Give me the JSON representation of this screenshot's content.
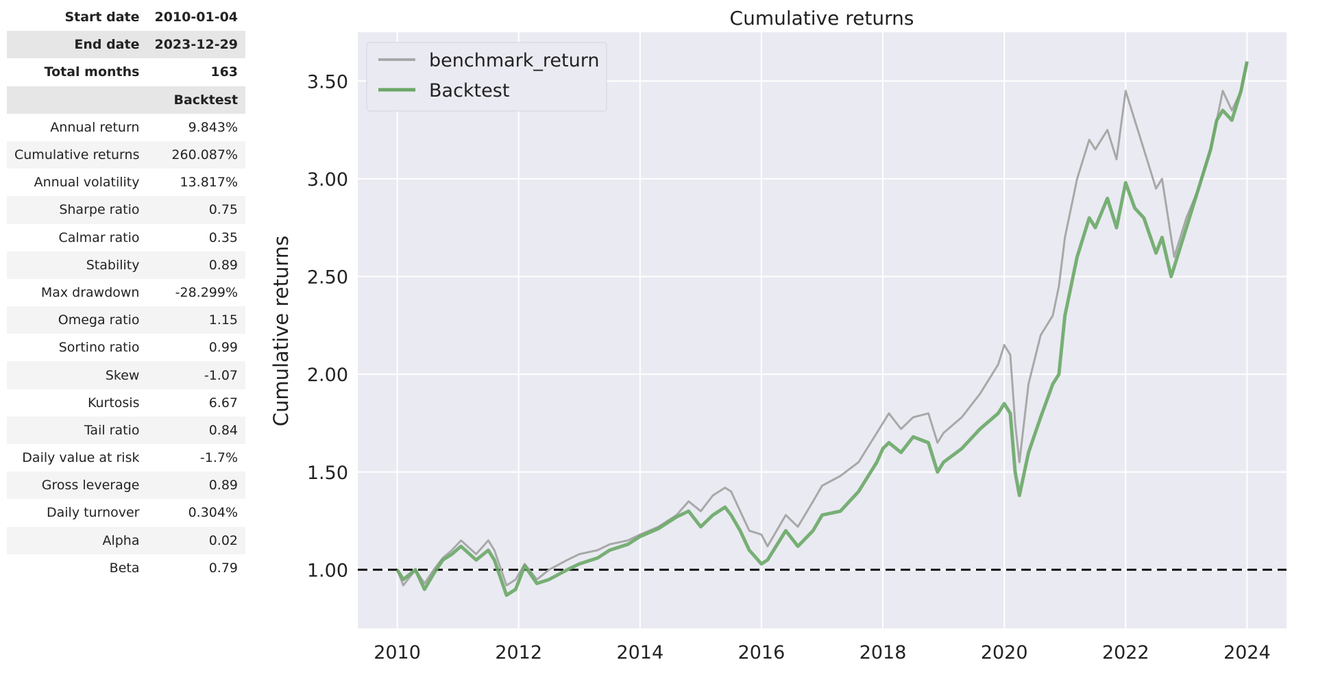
{
  "stats_table": {
    "header_rows": [
      {
        "label": "Start date",
        "value": "2010-01-04"
      },
      {
        "label": "End date",
        "value": "2023-12-29"
      },
      {
        "label": "Total months",
        "value": "163"
      },
      {
        "label": "",
        "value": "Backtest"
      }
    ],
    "rows": [
      {
        "label": "Annual return",
        "value": "9.843%"
      },
      {
        "label": "Cumulative returns",
        "value": "260.087%"
      },
      {
        "label": "Annual volatility",
        "value": "13.817%"
      },
      {
        "label": "Sharpe ratio",
        "value": "0.75"
      },
      {
        "label": "Calmar ratio",
        "value": "0.35"
      },
      {
        "label": "Stability",
        "value": "0.89"
      },
      {
        "label": "Max drawdown",
        "value": "-28.299%"
      },
      {
        "label": "Omega ratio",
        "value": "1.15"
      },
      {
        "label": "Sortino ratio",
        "value": "0.99"
      },
      {
        "label": "Skew",
        "value": "-1.07"
      },
      {
        "label": "Kurtosis",
        "value": "6.67"
      },
      {
        "label": "Tail ratio",
        "value": "0.84"
      },
      {
        "label": "Daily value at risk",
        "value": "-1.7%"
      },
      {
        "label": "Gross leverage",
        "value": "0.89"
      },
      {
        "label": "Daily turnover",
        "value": "0.304%"
      },
      {
        "label": "Alpha",
        "value": "0.02"
      },
      {
        "label": "Beta",
        "value": "0.79"
      }
    ]
  },
  "chart_data": {
    "type": "line",
    "title": "Cumulative returns",
    "xlabel": "",
    "ylabel": "Cumulative returns",
    "xlim": [
      2009.35,
      2024.65
    ],
    "ylim": [
      0.7,
      3.75
    ],
    "xticks": [
      2010,
      2012,
      2014,
      2016,
      2018,
      2020,
      2022,
      2024
    ],
    "yticks": [
      1.0,
      1.5,
      2.0,
      2.5,
      3.0,
      3.5
    ],
    "ytick_labels": [
      "1.00",
      "1.50",
      "2.00",
      "2.50",
      "3.00",
      "3.50"
    ],
    "grid": true,
    "legend_position": "top-left",
    "reference_line": {
      "y": 1.0,
      "style": "dashed",
      "color": "#111111"
    },
    "series": [
      {
        "name": "benchmark_return",
        "color": "#a8a8a8",
        "x": [
          2010.0,
          2010.1,
          2010.3,
          2010.45,
          2010.6,
          2010.75,
          2010.9,
          2011.05,
          2011.3,
          2011.5,
          2011.6,
          2011.8,
          2011.95,
          2012.1,
          2012.3,
          2012.5,
          2012.8,
          2013.0,
          2013.3,
          2013.5,
          2013.8,
          2014.0,
          2014.3,
          2014.6,
          2014.8,
          2015.0,
          2015.2,
          2015.4,
          2015.5,
          2015.65,
          2015.8,
          2016.0,
          2016.1,
          2016.4,
          2016.6,
          2016.85,
          2017.0,
          2017.3,
          2017.6,
          2017.9,
          2018.0,
          2018.1,
          2018.3,
          2018.5,
          2018.75,
          2018.9,
          2019.0,
          2019.3,
          2019.6,
          2019.9,
          2020.0,
          2020.1,
          2020.18,
          2020.25,
          2020.4,
          2020.6,
          2020.8,
          2020.9,
          2021.0,
          2021.2,
          2021.4,
          2021.5,
          2021.7,
          2021.85,
          2022.0,
          2022.15,
          2022.3,
          2022.5,
          2022.6,
          2022.75,
          2022.8,
          2023.0,
          2023.2,
          2023.4,
          2023.5,
          2023.6,
          2023.75,
          2023.9,
          2024.0
        ],
        "y": [
          1.0,
          0.92,
          1.0,
          0.93,
          1.0,
          1.06,
          1.1,
          1.15,
          1.08,
          1.15,
          1.1,
          0.92,
          0.95,
          1.03,
          0.95,
          1.0,
          1.05,
          1.08,
          1.1,
          1.13,
          1.15,
          1.18,
          1.22,
          1.28,
          1.35,
          1.3,
          1.38,
          1.42,
          1.4,
          1.3,
          1.2,
          1.18,
          1.12,
          1.28,
          1.22,
          1.35,
          1.43,
          1.48,
          1.55,
          1.7,
          1.75,
          1.8,
          1.72,
          1.78,
          1.8,
          1.65,
          1.7,
          1.78,
          1.9,
          2.05,
          2.15,
          2.1,
          1.75,
          1.55,
          1.95,
          2.2,
          2.3,
          2.45,
          2.7,
          3.0,
          3.2,
          3.15,
          3.25,
          3.1,
          3.45,
          3.3,
          3.15,
          2.95,
          3.0,
          2.7,
          2.6,
          2.8,
          2.95,
          3.15,
          3.3,
          3.45,
          3.35,
          3.45,
          3.6
        ]
      },
      {
        "name": "Backtest",
        "color": "#6aa867",
        "x": [
          2010.0,
          2010.1,
          2010.3,
          2010.45,
          2010.6,
          2010.75,
          2010.9,
          2011.05,
          2011.3,
          2011.5,
          2011.6,
          2011.8,
          2011.95,
          2012.1,
          2012.3,
          2012.5,
          2012.8,
          2013.0,
          2013.3,
          2013.5,
          2013.8,
          2014.0,
          2014.3,
          2014.6,
          2014.8,
          2015.0,
          2015.2,
          2015.4,
          2015.5,
          2015.65,
          2015.8,
          2016.0,
          2016.1,
          2016.4,
          2016.6,
          2016.85,
          2017.0,
          2017.3,
          2017.6,
          2017.9,
          2018.0,
          2018.1,
          2018.3,
          2018.5,
          2018.75,
          2018.9,
          2019.0,
          2019.3,
          2019.6,
          2019.9,
          2020.0,
          2020.1,
          2020.18,
          2020.25,
          2020.4,
          2020.6,
          2020.8,
          2020.9,
          2021.0,
          2021.2,
          2021.4,
          2021.5,
          2021.7,
          2021.85,
          2022.0,
          2022.15,
          2022.3,
          2022.5,
          2022.6,
          2022.75,
          2022.8,
          2023.0,
          2023.2,
          2023.4,
          2023.5,
          2023.6,
          2023.75,
          2023.9,
          2024.0
        ],
        "y": [
          1.0,
          0.95,
          1.0,
          0.9,
          0.98,
          1.05,
          1.08,
          1.12,
          1.05,
          1.1,
          1.05,
          0.87,
          0.9,
          1.02,
          0.93,
          0.95,
          1.0,
          1.03,
          1.06,
          1.1,
          1.13,
          1.17,
          1.21,
          1.27,
          1.3,
          1.22,
          1.28,
          1.32,
          1.28,
          1.2,
          1.1,
          1.03,
          1.05,
          1.2,
          1.12,
          1.2,
          1.28,
          1.3,
          1.4,
          1.55,
          1.62,
          1.65,
          1.6,
          1.68,
          1.65,
          1.5,
          1.55,
          1.62,
          1.72,
          1.8,
          1.85,
          1.8,
          1.5,
          1.38,
          1.6,
          1.78,
          1.95,
          2.0,
          2.3,
          2.6,
          2.8,
          2.75,
          2.9,
          2.75,
          2.98,
          2.85,
          2.8,
          2.62,
          2.7,
          2.5,
          2.55,
          2.75,
          2.95,
          3.15,
          3.3,
          3.35,
          3.3,
          3.45,
          3.6
        ]
      }
    ]
  }
}
